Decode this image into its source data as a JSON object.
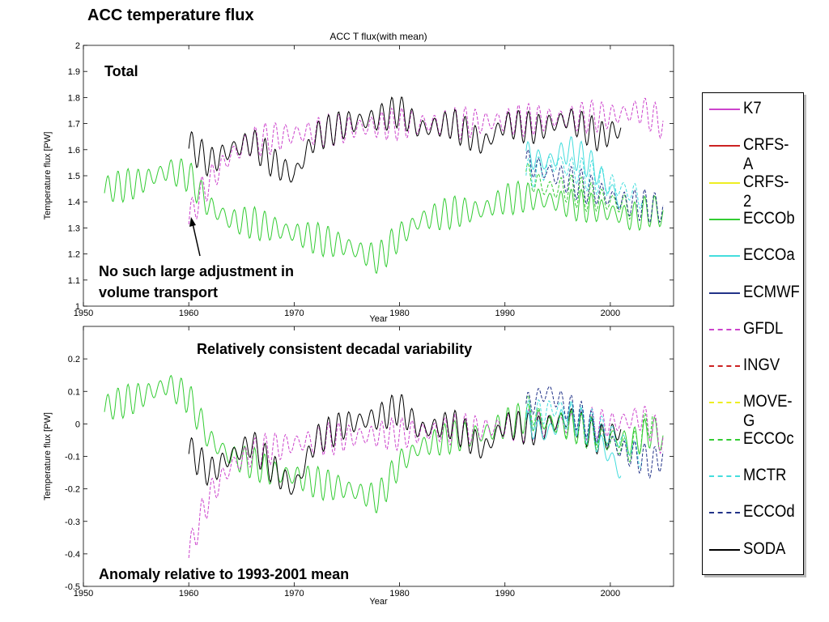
{
  "slide": {
    "title": "ACC temperature flux",
    "notes": {
      "total": "Total",
      "adjustment_line1": "No such large adjustment in",
      "adjustment_line2": "volume transport",
      "decadal": "Relatively consistent decadal variability",
      "anomaly": "Anomaly relative to 1993-2001 mean"
    }
  },
  "chart_data": [
    {
      "type": "line",
      "title": "ACC T flux(with mean)",
      "xlabel": "Year",
      "ylabel": "Temperature flux [PW]",
      "xlim": [
        1950,
        2006
      ],
      "ylim": [
        1,
        2
      ],
      "xticks": [
        1950,
        1960,
        1970,
        1980,
        1990,
        2000
      ],
      "yticks": [
        1,
        1.1,
        1.2,
        1.3,
        1.4,
        1.5,
        1.6,
        1.7,
        1.8,
        1.9,
        2
      ],
      "ytick_labels": [
        "1",
        "1.1",
        "1.2",
        "1.3",
        "1.4",
        "1.5",
        "1.6",
        "1.7",
        "1.8",
        "1.9",
        "2"
      ],
      "series": [
        {
          "name": "ECCOb",
          "color": "#33cc33",
          "dash": "solid",
          "x": [
            1952,
            1955,
            1958,
            1960,
            1962,
            1964,
            1966,
            1968,
            1970,
            1972,
            1975,
            1978,
            1980,
            1982,
            1985,
            1988,
            1990,
            1992,
            1995,
            1998,
            2000,
            2002,
            2004,
            2005
          ],
          "y": [
            1.45,
            1.47,
            1.52,
            1.5,
            1.38,
            1.33,
            1.32,
            1.3,
            1.28,
            1.26,
            1.23,
            1.18,
            1.27,
            1.33,
            1.36,
            1.37,
            1.41,
            1.42,
            1.4,
            1.38,
            1.36,
            1.34,
            1.37,
            1.35
          ]
        },
        {
          "name": "GFDL",
          "color": "#cc44cc",
          "dash": "dashed",
          "x": [
            1960,
            1961,
            1962,
            1964,
            1966,
            1970,
            1975,
            1980,
            1985,
            1990,
            1995,
            2000,
            2003,
            2005
          ],
          "y": [
            1.33,
            1.42,
            1.48,
            1.58,
            1.63,
            1.66,
            1.68,
            1.7,
            1.7,
            1.71,
            1.72,
            1.73,
            1.75,
            1.7
          ]
        },
        {
          "name": "SODA",
          "color": "#000000",
          "dash": "solid",
          "x": [
            1960,
            1962,
            1964,
            1966,
            1968,
            1970,
            1972,
            1975,
            1978,
            1980,
            1982,
            1985,
            1988,
            1990,
            1993,
            1996,
            1999,
            2001
          ],
          "y": [
            1.62,
            1.55,
            1.6,
            1.63,
            1.55,
            1.5,
            1.65,
            1.7,
            1.72,
            1.75,
            1.68,
            1.7,
            1.62,
            1.7,
            1.68,
            1.72,
            1.65,
            1.68
          ]
        },
        {
          "name": "ECCOa",
          "color": "#44dddd",
          "dash": "solid",
          "x": [
            1992,
            1994,
            1996,
            1998,
            2000,
            2001
          ],
          "y": [
            1.58,
            1.55,
            1.6,
            1.55,
            1.45,
            1.4
          ]
        },
        {
          "name": "ECCOc",
          "color": "#33cc33",
          "dash": "dashed",
          "x": [
            1992,
            1994,
            1996,
            1998,
            2000,
            2002
          ],
          "y": [
            1.5,
            1.45,
            1.45,
            1.42,
            1.4,
            1.38
          ]
        },
        {
          "name": "MCTR",
          "color": "#44dddd",
          "dash": "dashed",
          "x": [
            1992,
            1995,
            1998,
            2001,
            2003
          ],
          "y": [
            1.5,
            1.55,
            1.5,
            1.45,
            1.42
          ]
        },
        {
          "name": "ECCOd",
          "color": "#223388",
          "dash": "dashed",
          "x": [
            1992,
            1995,
            1998,
            2001,
            2004,
            2005
          ],
          "y": [
            1.55,
            1.5,
            1.45,
            1.4,
            1.38,
            1.37
          ]
        }
      ]
    },
    {
      "type": "line",
      "title": "",
      "xlabel": "Year",
      "ylabel": "Temperature flux [PW]",
      "xlim": [
        1950,
        2006
      ],
      "ylim": [
        -0.5,
        0.3
      ],
      "xticks": [
        1950,
        1960,
        1970,
        1980,
        1990,
        2000
      ],
      "yticks": [
        -0.5,
        -0.4,
        -0.3,
        -0.2,
        -0.1,
        0,
        0.1,
        0.2
      ],
      "ytick_labels": [
        "-0.5",
        "-0.4",
        "-0.3",
        "-0.2",
        "-0.1",
        "0",
        "0.1",
        "0.2"
      ],
      "series": [
        {
          "name": "ECCOb",
          "color": "#33cc33",
          "dash": "solid",
          "x": [
            1952,
            1955,
            1958,
            1960,
            1962,
            1964,
            1966,
            1968,
            1970,
            1972,
            1975,
            1978,
            1980,
            1982,
            1985,
            1988,
            1990,
            1992,
            1995,
            1998,
            2000,
            2002,
            2004,
            2005
          ],
          "y": [
            0.05,
            0.08,
            0.12,
            0.08,
            -0.05,
            -0.1,
            -0.12,
            -0.15,
            -0.16,
            -0.18,
            -0.2,
            -0.23,
            -0.12,
            -0.07,
            -0.04,
            -0.03,
            0.0,
            0.02,
            0.0,
            -0.02,
            -0.04,
            -0.06,
            -0.02,
            -0.05
          ]
        },
        {
          "name": "GFDL",
          "color": "#cc44cc",
          "dash": "dashed",
          "x": [
            1960,
            1961,
            1962,
            1964,
            1966,
            1970,
            1975,
            1980,
            1985,
            1990,
            1995,
            2000,
            2003,
            2005
          ],
          "y": [
            -0.4,
            -0.3,
            -0.22,
            -0.13,
            -0.09,
            -0.06,
            -0.04,
            -0.03,
            -0.02,
            -0.01,
            0.0,
            0.0,
            0.02,
            -0.05
          ]
        },
        {
          "name": "SODA",
          "color": "#000000",
          "dash": "solid",
          "x": [
            1960,
            1962,
            1964,
            1966,
            1968,
            1970,
            1972,
            1975,
            1978,
            1980,
            1982,
            1985,
            1988,
            1990,
            1993,
            1996,
            1999,
            2001
          ],
          "y": [
            -0.08,
            -0.15,
            -0.1,
            -0.06,
            -0.14,
            -0.2,
            -0.05,
            0.0,
            0.02,
            0.05,
            -0.02,
            0.0,
            -0.08,
            0.0,
            -0.02,
            0.02,
            -0.05,
            -0.02
          ]
        },
        {
          "name": "ECCOa",
          "color": "#44dddd",
          "dash": "solid",
          "x": [
            1992,
            1994,
            1996,
            1998,
            2000,
            2001
          ],
          "y": [
            0.0,
            -0.03,
            0.03,
            -0.02,
            -0.1,
            -0.15
          ]
        },
        {
          "name": "ECCOc",
          "color": "#33cc33",
          "dash": "dashed",
          "x": [
            1992,
            1994,
            1996,
            1998,
            2000,
            2002,
            2004
          ],
          "y": [
            0.05,
            0.0,
            0.0,
            -0.03,
            -0.06,
            -0.08,
            0.02
          ]
        },
        {
          "name": "MCTR",
          "color": "#44dddd",
          "dash": "dashed",
          "x": [
            1992,
            1995,
            1998,
            2001,
            2003
          ],
          "y": [
            0.02,
            0.05,
            0.0,
            -0.05,
            -0.1
          ]
        },
        {
          "name": "ECCOd",
          "color": "#223388",
          "dash": "dashed",
          "x": [
            1992,
            1994,
            1996,
            1998,
            2001,
            2004,
            2005
          ],
          "y": [
            0.05,
            0.1,
            0.05,
            0.0,
            -0.08,
            -0.12,
            -0.1
          ]
        }
      ]
    }
  ],
  "legend": {
    "placement": "right",
    "items": [
      {
        "label": "K7",
        "color": "#cc44cc",
        "dash": "solid"
      },
      {
        "label": "CRFS-A",
        "color": "#cc2222",
        "dash": "solid"
      },
      {
        "label": "CRFS-2",
        "color": "#eeee22",
        "dash": "solid"
      },
      {
        "label": "ECCOb",
        "color": "#33cc33",
        "dash": "solid"
      },
      {
        "label": "ECCOa",
        "color": "#44dddd",
        "dash": "solid"
      },
      {
        "label": "ECMWF",
        "color": "#223388",
        "dash": "solid"
      },
      {
        "label": "GFDL",
        "color": "#cc44cc",
        "dash": "dashed"
      },
      {
        "label": "INGV",
        "color": "#cc2222",
        "dash": "dashed"
      },
      {
        "label": "MOVE-G",
        "color": "#eeee22",
        "dash": "dashed"
      },
      {
        "label": "ECCOc",
        "color": "#33cc33",
        "dash": "dashed"
      },
      {
        "label": "MCTR",
        "color": "#44dddd",
        "dash": "dashed"
      },
      {
        "label": "ECCOd",
        "color": "#223388",
        "dash": "dashed"
      },
      {
        "label": "SODA",
        "color": "#000000",
        "dash": "solid"
      }
    ]
  }
}
